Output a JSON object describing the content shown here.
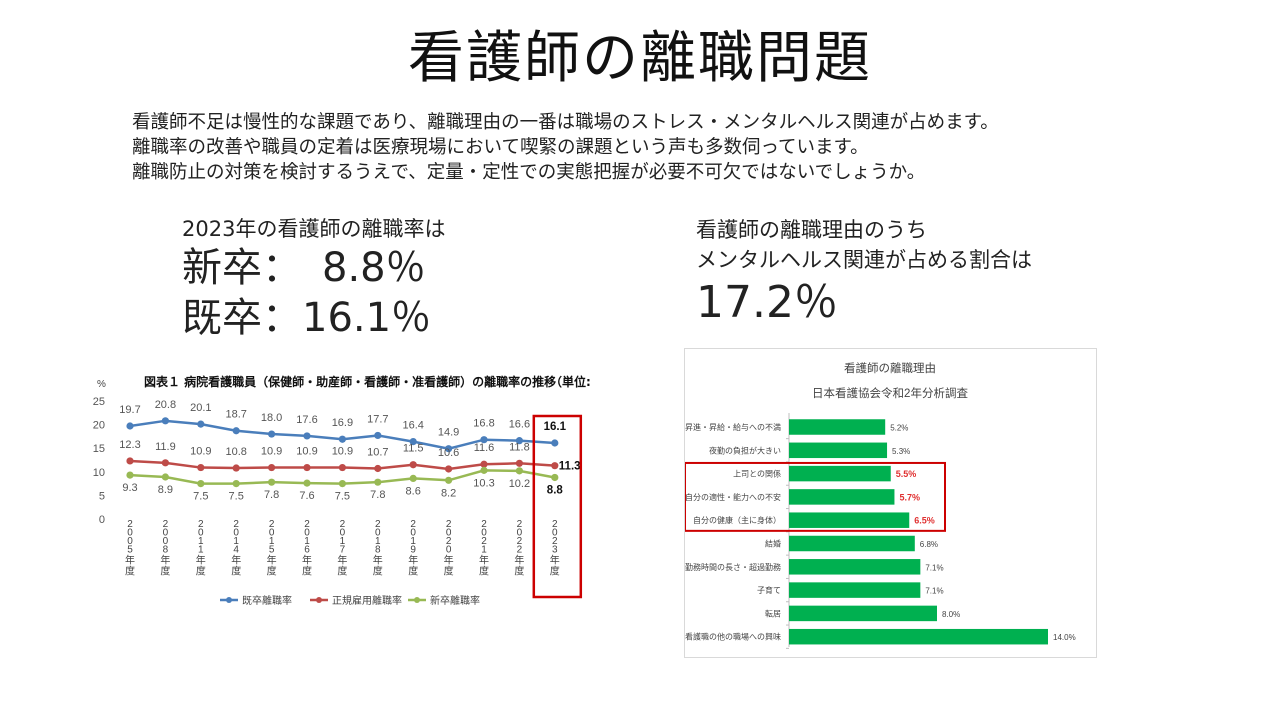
{
  "slide": {
    "title": "看護師の離職問題",
    "intro": [
      "看護師不足は慢性的な課題であり、離職理由の一番は職場のストレス・メンタルヘルス関連が占めます。",
      "離職率の改善や職員の定着は医療現場において喫緊の課題という声も多数伺っています。",
      "離職防止の対策を検討するうえで、定量・定性での実態把握が必要不可欠ではないでしょうか。"
    ],
    "left_stat": {
      "sub": "2023年の看護師の離職率は",
      "line1": "新卒：　8.8％",
      "line2": "既卒：16.1％"
    },
    "right_stat": {
      "sub1": "看護師の離職理由のうち",
      "sub2": "メンタルヘルス関連が占める割合は",
      "big": "17.2％"
    }
  },
  "chart_data": [
    {
      "type": "line",
      "title": "図表１ 病院看護職員（保健師・助産師・看護師・准看護師）の離職率の推移",
      "unit_label": "（単位:",
      "ylabel": "%",
      "ylim": [
        0,
        25
      ],
      "yticks": [
        "0",
        "5",
        "10",
        "15",
        "20",
        "25"
      ],
      "grid": false,
      "legend_position": "bottom",
      "categories": [
        "2005年度",
        "2008年度",
        "2011年度",
        "2014年度",
        "2015年度",
        "2016年度",
        "2017年度",
        "2018年度",
        "2019年度",
        "2020年度",
        "2021年度",
        "2022年度",
        "2023年度"
      ],
      "series": [
        {
          "name": "既卒離職率",
          "color": "#4a7ebb",
          "values": [
            19.7,
            20.8,
            20.1,
            18.7,
            18.0,
            17.6,
            16.9,
            17.7,
            16.4,
            14.9,
            16.8,
            16.6,
            16.1
          ]
        },
        {
          "name": "正規雇用離職率",
          "color": "#be4b48",
          "values": [
            12.3,
            11.9,
            10.9,
            10.8,
            10.9,
            10.9,
            10.9,
            10.7,
            11.5,
            10.6,
            11.6,
            11.8,
            11.3
          ]
        },
        {
          "name": "新卒離職率",
          "color": "#98b954",
          "values": [
            9.3,
            8.9,
            7.5,
            7.5,
            7.8,
            7.6,
            7.5,
            7.8,
            8.6,
            8.2,
            10.3,
            10.2,
            8.8
          ]
        }
      ],
      "highlight_category": "2023年度",
      "highlight_color": "#cc0000"
    },
    {
      "type": "bar",
      "orientation": "horizontal",
      "title": "看護師の離職理由",
      "subtitle": "日本看護協会令和2年分析調査",
      "bar_color": "#00b050",
      "highlight_color": "#e03030",
      "categories": [
        "昇進・昇給・給与への不満",
        "夜勤の負担が大きい",
        "上司との関係",
        "自分の適性・能力への不安",
        "自分の健康（主に身体）",
        "結婚",
        "勤務時間の長さ・超過勤務",
        "子育て",
        "転居",
        "看護職の他の職場への興味"
      ],
      "values": [
        5.2,
        5.3,
        5.5,
        5.7,
        6.5,
        6.8,
        7.1,
        7.1,
        8.0,
        14.0
      ],
      "labels": [
        "5.2%",
        "5.3%",
        "5.5%",
        "5.7%",
        "6.5%",
        "6.8%",
        "7.1%",
        "7.1%",
        "8.0%",
        "14.0%"
      ],
      "highlighted": [
        false,
        false,
        true,
        true,
        true,
        false,
        false,
        false,
        false,
        false
      ]
    }
  ]
}
